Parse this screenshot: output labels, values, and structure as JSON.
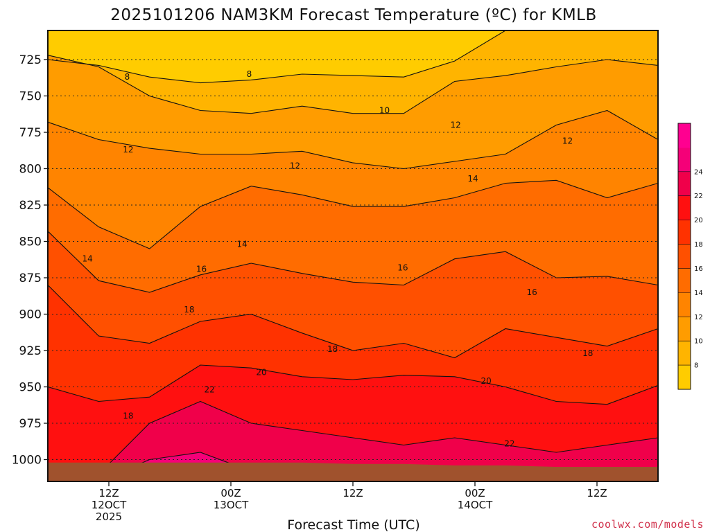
{
  "chart_data": {
    "type": "heatmap",
    "title": "2025101206 NAM3KM Forecast Temperature (ºC) for KMLB",
    "xlabel": "Forecast Time (UTC)",
    "ylabel": "",
    "yscale": "pressure (inverted)",
    "ylim": [
      1015,
      705
    ],
    "y_ticks": [
      725,
      750,
      775,
      800,
      825,
      850,
      875,
      900,
      925,
      950,
      975,
      1000
    ],
    "x_ticks": [
      {
        "hour": 6,
        "lines": [
          "12Z",
          "12OCT",
          "2025"
        ]
      },
      {
        "hour": 18,
        "lines": [
          "00Z",
          "13OCT"
        ]
      },
      {
        "hour": 30,
        "lines": [
          "12Z"
        ]
      },
      {
        "hour": 42,
        "lines": [
          "00Z",
          "14OCT"
        ]
      },
      {
        "hour": 54,
        "lines": [
          "12Z"
        ]
      }
    ],
    "xlim": [
      0,
      60
    ],
    "grid": "dotted horizontal at pressure levels",
    "colorbar": {
      "levels": [
        6,
        8,
        10,
        12,
        14,
        16,
        18,
        20,
        22,
        24,
        26
      ],
      "labels": [
        8,
        10,
        12,
        14,
        16,
        18,
        20,
        22,
        24
      ],
      "colors": [
        "#ffcc00",
        "#ffb400",
        "#ff9c00",
        "#ff8400",
        "#ff6c00",
        "#ff5000",
        "#ff3200",
        "#ff1010",
        "#f0004a",
        "#f50078",
        "#ff0090"
      ]
    },
    "contour_labels": [
      {
        "value": "8",
        "hour": 7.8,
        "p": 737
      },
      {
        "value": "8",
        "hour": 19.8,
        "p": 735
      },
      {
        "value": "10",
        "hour": 33.1,
        "p": 760
      },
      {
        "value": "12",
        "hour": 7.9,
        "p": 787
      },
      {
        "value": "12",
        "hour": 24.3,
        "p": 798
      },
      {
        "value": "12",
        "hour": 40.1,
        "p": 770
      },
      {
        "value": "12",
        "hour": 51.1,
        "p": 781
      },
      {
        "value": "14",
        "hour": 3.9,
        "p": 862
      },
      {
        "value": "14",
        "hour": 19.1,
        "p": 852
      },
      {
        "value": "14",
        "hour": 41.8,
        "p": 807
      },
      {
        "value": "16",
        "hour": 15.1,
        "p": 869
      },
      {
        "value": "16",
        "hour": 34.9,
        "p": 868
      },
      {
        "value": "16",
        "hour": 47.6,
        "p": 885
      },
      {
        "value": "18",
        "hour": 13.9,
        "p": 897
      },
      {
        "value": "18",
        "hour": 28.0,
        "p": 924
      },
      {
        "value": "18",
        "hour": 53.1,
        "p": 927
      },
      {
        "value": "18",
        "hour": 7.9,
        "p": 970
      },
      {
        "value": "20",
        "hour": 21.0,
        "p": 940
      },
      {
        "value": "20",
        "hour": 43.1,
        "p": 946
      },
      {
        "value": "22",
        "hour": 15.9,
        "p": 952
      },
      {
        "value": "22",
        "hour": 45.4,
        "p": 989
      }
    ],
    "layers": [
      {
        "above_value": 6,
        "boundary_p": [
          705,
          705,
          705,
          705,
          705,
          705,
          705,
          705,
          705,
          705,
          705,
          705,
          705
        ]
      },
      {
        "above_value": 8,
        "boundary_p": [
          725,
          729,
          737,
          741,
          739,
          735,
          736,
          737,
          726,
          705,
          705,
          705,
          705
        ]
      },
      {
        "above_value": 10,
        "boundary_p": [
          722,
          730,
          750,
          760,
          762,
          757,
          762,
          762,
          740,
          736,
          730,
          725,
          729
        ]
      },
      {
        "above_value": 12,
        "boundary_p": [
          768,
          780,
          786,
          790,
          790,
          788,
          796,
          800,
          795,
          790,
          770,
          760,
          780
        ]
      },
      {
        "above_value": 14,
        "boundary_p": [
          813,
          840,
          855,
          826,
          812,
          818,
          826,
          826,
          820,
          810,
          808,
          820,
          810
        ]
      },
      {
        "above_value": 16,
        "boundary_p": [
          843,
          877,
          885,
          873,
          865,
          872,
          878,
          880,
          862,
          857,
          875,
          874,
          880
        ]
      },
      {
        "above_value": 18,
        "boundary_p": [
          880,
          915,
          920,
          905,
          900,
          913,
          925,
          920,
          930,
          910,
          916,
          922,
          910
        ]
      },
      {
        "above_value": 20,
        "boundary_p": [
          950,
          960,
          957,
          935,
          937,
          943,
          945,
          942,
          943,
          950,
          960,
          962,
          949
        ]
      },
      {
        "above_value": 22,
        "boundary_p": [
          1015,
          1010,
          975,
          960,
          975,
          980,
          985,
          990,
          985,
          990,
          995,
          990,
          985
        ]
      },
      {
        "above_value": 24,
        "boundary_p": [
          1015,
          1015,
          1000,
          995,
          1008,
          1015,
          1015,
          1015,
          1015,
          1015,
          1015,
          1015,
          1015
        ]
      }
    ],
    "boundary_hours": [
      0,
      5,
      10,
      15,
      20,
      25,
      30,
      35,
      40,
      45,
      50,
      55,
      60
    ],
    "terrain": {
      "color": "#a0522d",
      "surface_p": [
        1002,
        1002,
        1002,
        1002,
        1002,
        1002,
        1003,
        1003,
        1004,
        1004,
        1005,
        1005,
        1005
      ]
    },
    "watermark": "coolwx.com/models"
  }
}
